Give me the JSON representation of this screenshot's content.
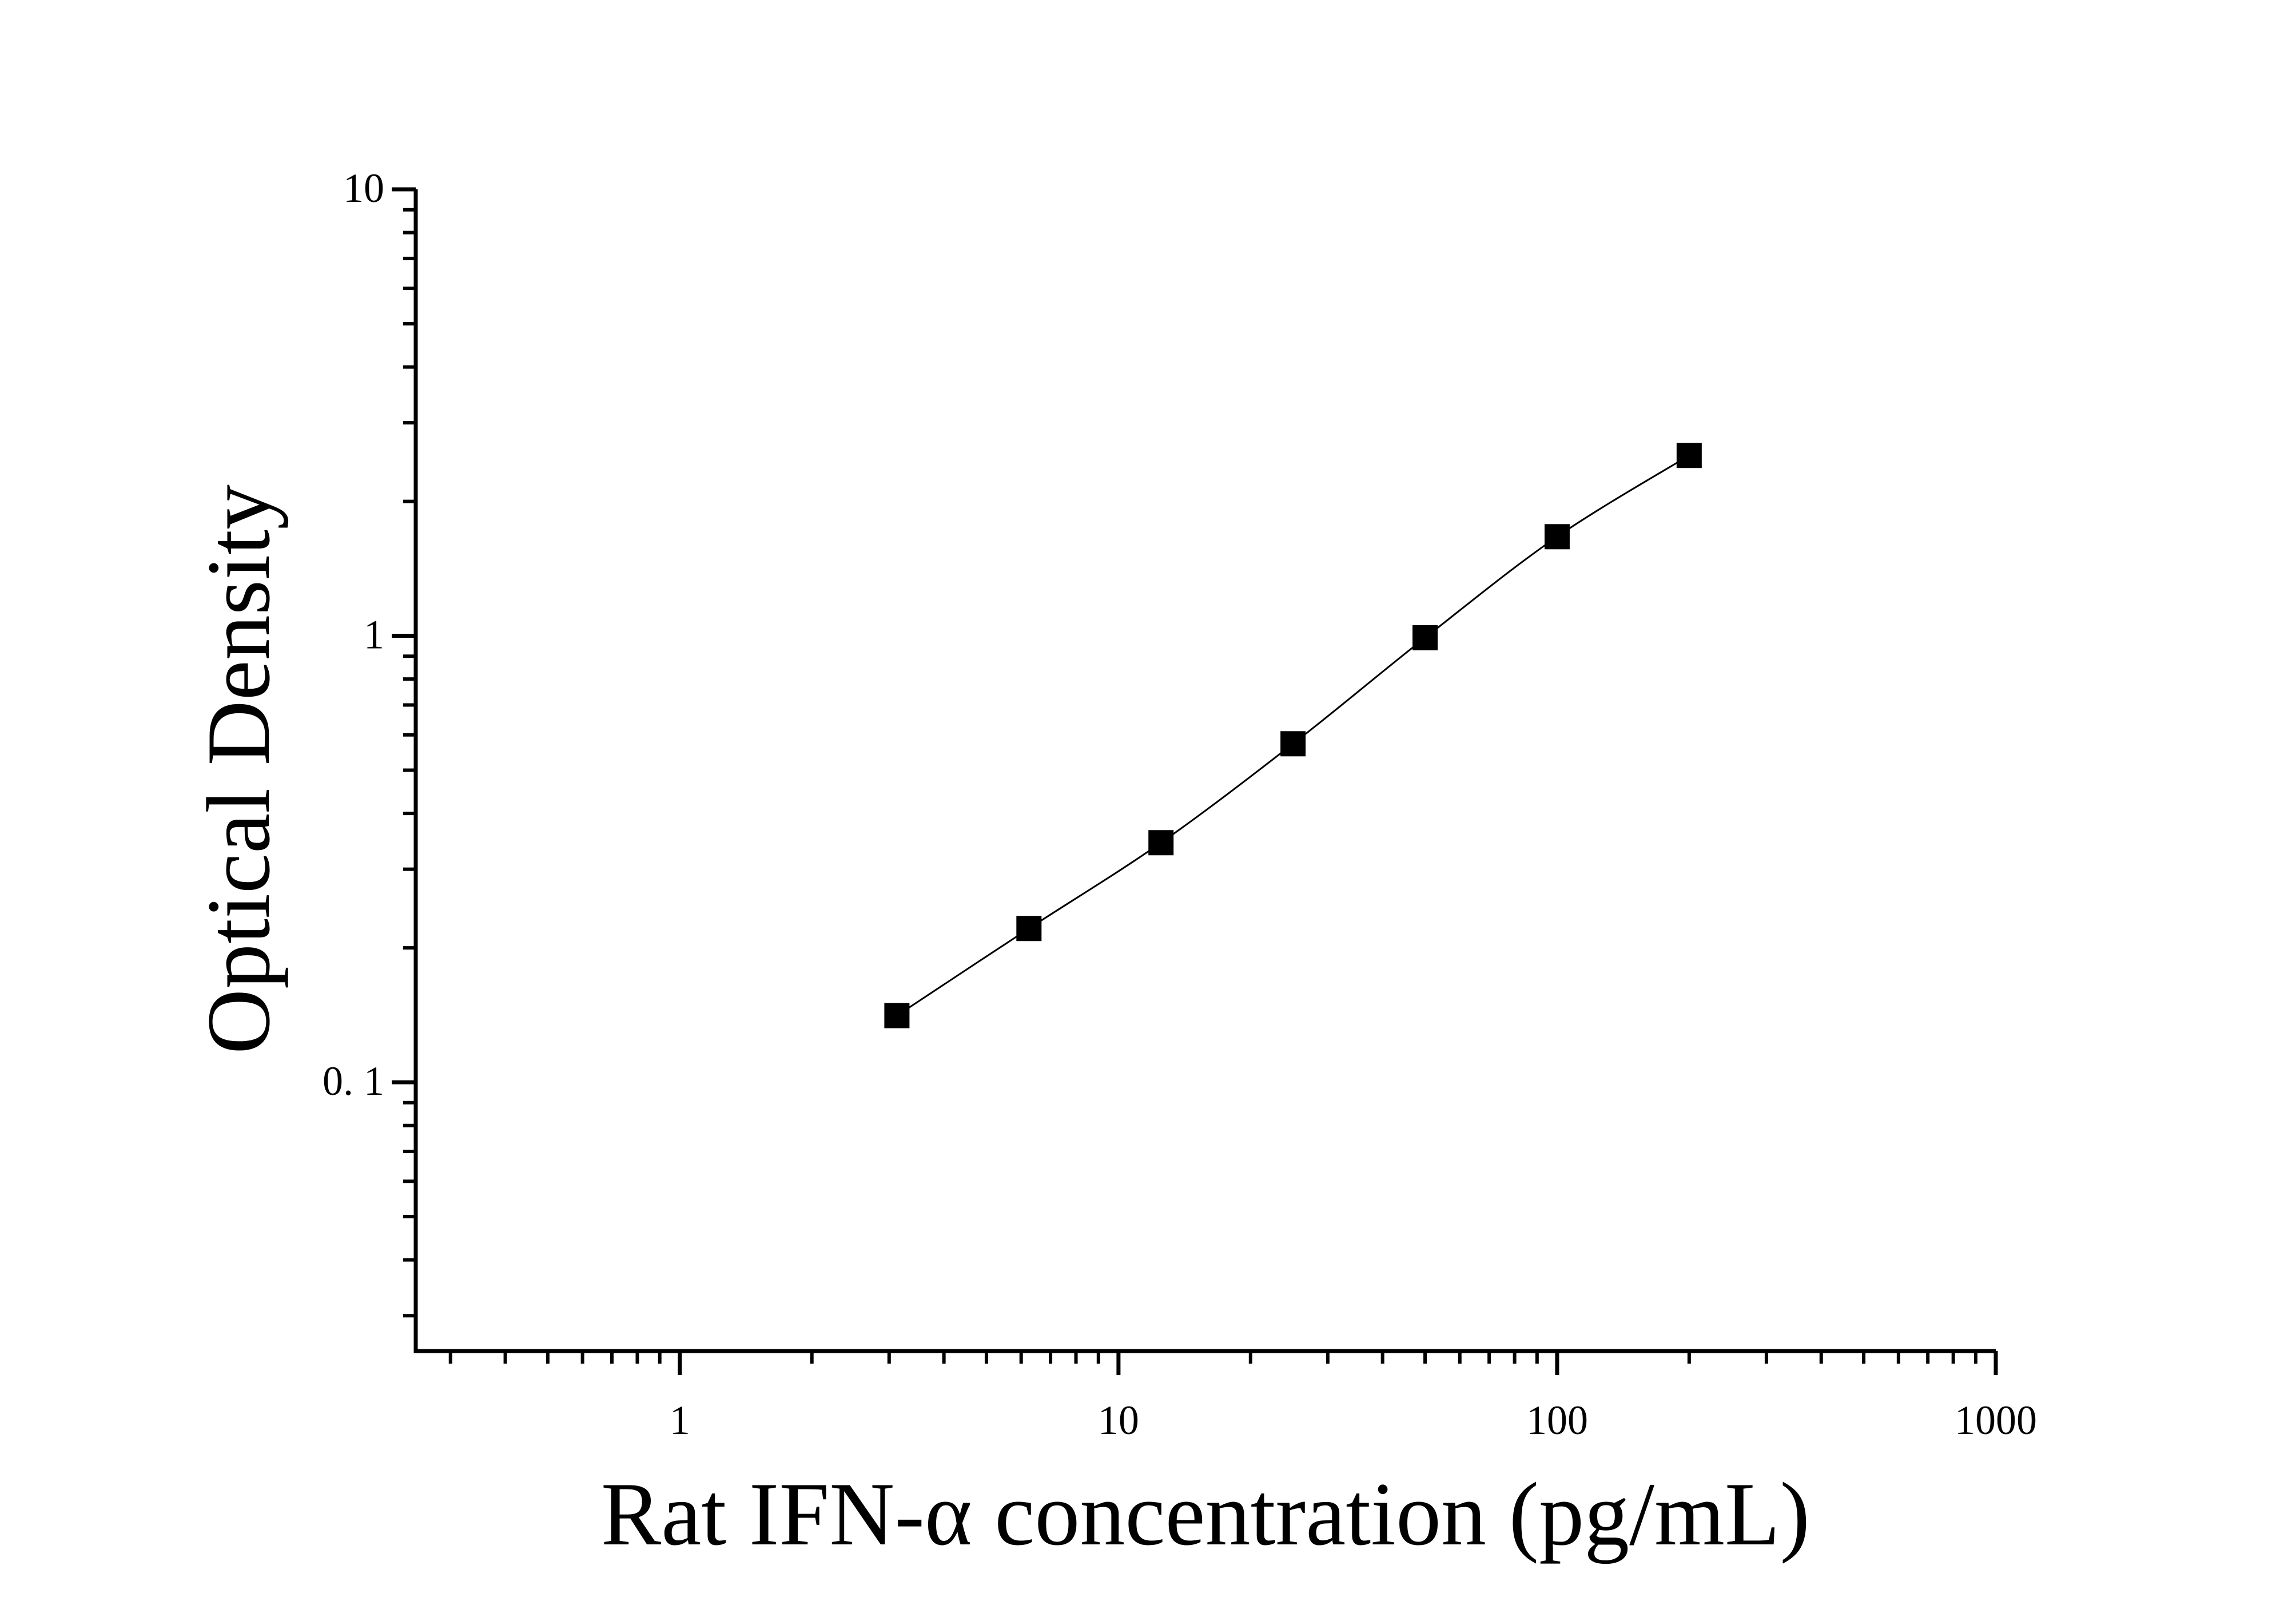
{
  "chart_data": {
    "type": "line",
    "xlabel": "Rat IFN-α concentration (pg/mL)",
    "ylabel": "Optical Density",
    "xscale": "log",
    "yscale": "log",
    "xlim": [
      0.25,
      1000
    ],
    "ylim": [
      0.025,
      10
    ],
    "x_ticks": [
      1,
      10,
      100,
      1000
    ],
    "x_tick_labels": [
      "1",
      "10",
      "100",
      "1000"
    ],
    "y_ticks": [
      0.1,
      1,
      10
    ],
    "y_tick_labels": [
      "0. 1",
      "1",
      "10"
    ],
    "grid": false,
    "marker": "square",
    "color": "#000000",
    "series": [
      {
        "x": [
          3.125,
          6.25,
          12.5,
          25,
          50,
          100,
          200
        ],
        "y": [
          0.141,
          0.221,
          0.344,
          0.573,
          0.99,
          1.667,
          2.535
        ]
      }
    ]
  }
}
